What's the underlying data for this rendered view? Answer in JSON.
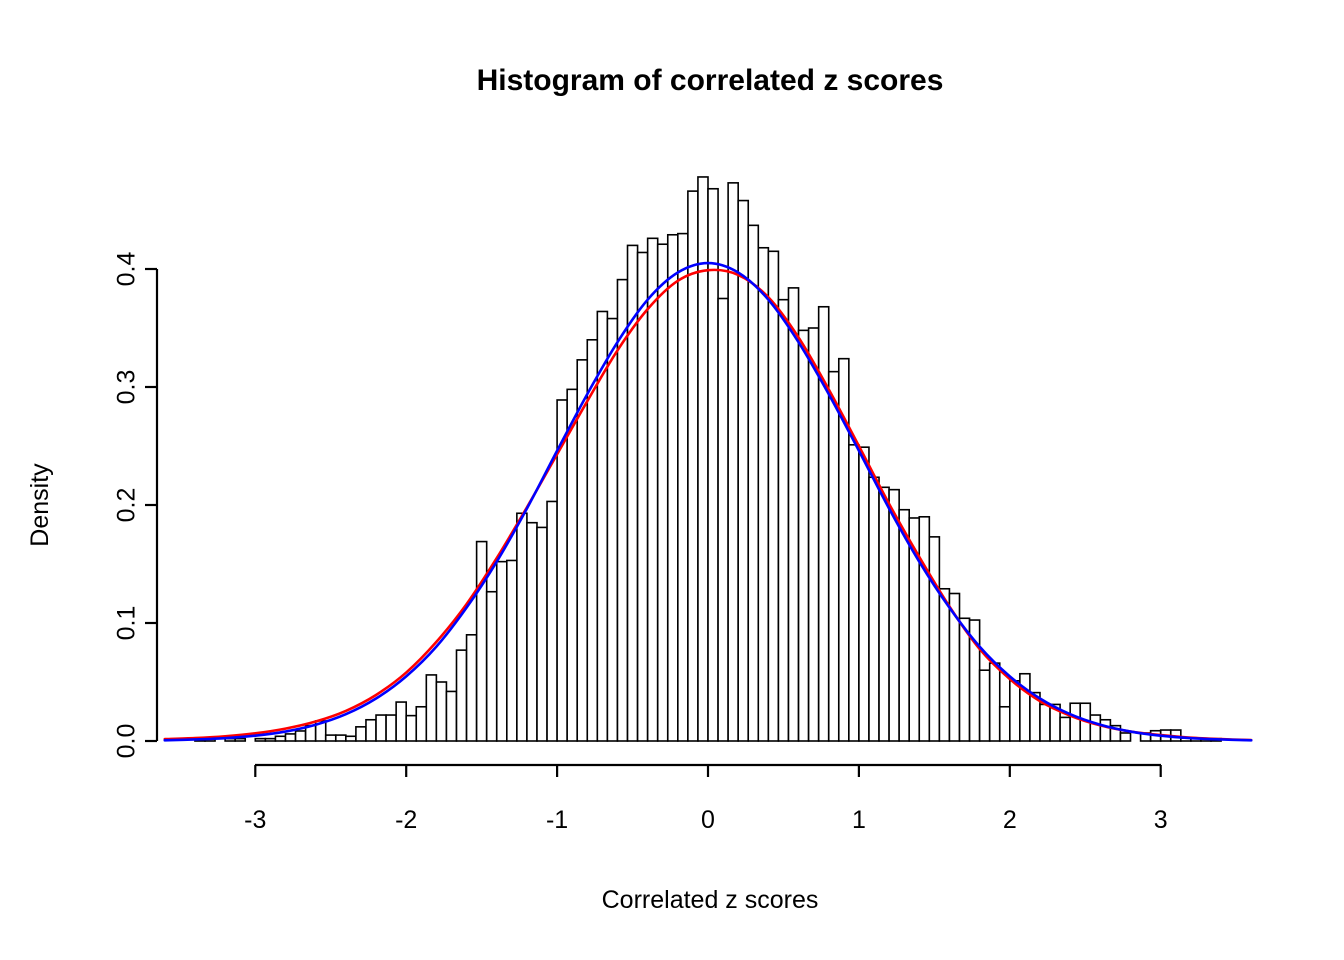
{
  "figure": {
    "title": "Histogram of correlated z scores",
    "xlabel": "Correlated z scores",
    "ylabel": "Density",
    "background_color": "#ffffff",
    "foreground_color": "#000000"
  },
  "axes": {
    "x_tick_labels": [
      "-3",
      "-2",
      "-1",
      "0",
      "1",
      "2",
      "3"
    ],
    "x_tick_values": [
      -3,
      -2,
      -1,
      0,
      1,
      2,
      3
    ],
    "y_tick_labels": [
      "0.0",
      "0.1",
      "0.2",
      "0.3",
      "0.4"
    ],
    "y_tick_values": [
      0.0,
      0.1,
      0.2,
      0.3,
      0.4
    ],
    "xlim": [
      -3.65,
      3.65
    ],
    "ylim": [
      0,
      0.485
    ],
    "grid": false,
    "legend": "none"
  },
  "chart_data": {
    "type": "bar",
    "subtype": "histogram-with-density-overlays",
    "title": "Histogram of correlated z scores",
    "xlabel": "Correlated z scores",
    "ylabel": "Density",
    "histogram": {
      "bar_fill": "#ffffff",
      "bar_border": "#000000",
      "bin_start": -3.4,
      "bin_width": 0.066667,
      "densities": [
        0.002,
        0.002,
        0,
        0.002,
        0.002,
        0,
        0.002,
        0.002,
        0.004,
        0.006,
        0.0085,
        0.013,
        0.017,
        0.005,
        0.005,
        0.004,
        0.012,
        0.018,
        0.022,
        0.022,
        0.033,
        0.0215,
        0.029,
        0.056,
        0.05,
        0.042,
        0.077,
        0.09,
        0.169,
        0.1265,
        0.152,
        0.153,
        0.193,
        0.185,
        0.181,
        0.203,
        0.289,
        0.298,
        0.323,
        0.34,
        0.364,
        0.358,
        0.391,
        0.42,
        0.414,
        0.426,
        0.421,
        0.429,
        0.43,
        0.466,
        0.478,
        0.468,
        0.375,
        0.473,
        0.458,
        0.437,
        0.418,
        0.415,
        0.374,
        0.384,
        0.348,
        0.35,
        0.368,
        0.313,
        0.324,
        0.251,
        0.249,
        0.2235,
        0.215,
        0.213,
        0.196,
        0.189,
        0.19,
        0.173,
        0.129,
        0.125,
        0.104,
        0.1025,
        0.06,
        0.066,
        0.029,
        0.051,
        0.057,
        0.041,
        0.031,
        0.031,
        0.02,
        0.032,
        0.032,
        0.022,
        0.018,
        0.013,
        0.0068,
        0,
        0.0068,
        0.0087,
        0.0093,
        0.0093,
        0.0025,
        0.0025,
        0.002,
        0.002
      ]
    },
    "series": [
      {
        "name": "kernel-density-curve",
        "color": "#ff0000",
        "points": [
          [
            -3.6,
            0.0016
          ],
          [
            -3.4,
            0.0025
          ],
          [
            -3.2,
            0.004
          ],
          [
            -3.0,
            0.0065
          ],
          [
            -2.8,
            0.0105
          ],
          [
            -2.6,
            0.0165
          ],
          [
            -2.4,
            0.0255
          ],
          [
            -2.2,
            0.039
          ],
          [
            -2.0,
            0.058
          ],
          [
            -1.8,
            0.084
          ],
          [
            -1.6,
            0.116
          ],
          [
            -1.4,
            0.155
          ],
          [
            -1.2,
            0.198
          ],
          [
            -1.0,
            0.243
          ],
          [
            -0.8,
            0.288
          ],
          [
            -0.6,
            0.331
          ],
          [
            -0.4,
            0.366
          ],
          [
            -0.2,
            0.39
          ],
          [
            0.0,
            0.399
          ],
          [
            0.2,
            0.395
          ],
          [
            0.4,
            0.376
          ],
          [
            0.6,
            0.342
          ],
          [
            0.8,
            0.298
          ],
          [
            1.0,
            0.25
          ],
          [
            1.2,
            0.201
          ],
          [
            1.4,
            0.156
          ],
          [
            1.6,
            0.114
          ],
          [
            1.8,
            0.078
          ],
          [
            2.0,
            0.0525
          ],
          [
            2.2,
            0.0338
          ],
          [
            2.4,
            0.0215
          ],
          [
            2.6,
            0.0132
          ],
          [
            2.8,
            0.008
          ],
          [
            3.0,
            0.005
          ],
          [
            3.2,
            0.0028
          ],
          [
            3.4,
            0.0016
          ],
          [
            3.6,
            0.0008
          ]
        ]
      },
      {
        "name": "normal-density-curve",
        "color": "#0000ff",
        "points": [
          [
            -3.6,
            0.0006
          ],
          [
            -3.4,
            0.0013
          ],
          [
            -3.2,
            0.0024
          ],
          [
            -3.0,
            0.0045
          ],
          [
            -2.8,
            0.008
          ],
          [
            -2.6,
            0.0138
          ],
          [
            -2.4,
            0.0227
          ],
          [
            -2.2,
            0.036
          ],
          [
            -2.0,
            0.0548
          ],
          [
            -1.8,
            0.08
          ],
          [
            -1.6,
            0.113
          ],
          [
            -1.4,
            0.152
          ],
          [
            -1.2,
            0.197
          ],
          [
            -1.0,
            0.246
          ],
          [
            -0.8,
            0.294
          ],
          [
            -0.6,
            0.338
          ],
          [
            -0.4,
            0.374
          ],
          [
            -0.2,
            0.397
          ],
          [
            0.0,
            0.405
          ],
          [
            0.2,
            0.397
          ],
          [
            0.4,
            0.374
          ],
          [
            0.6,
            0.338
          ],
          [
            0.8,
            0.294
          ],
          [
            1.0,
            0.246
          ],
          [
            1.2,
            0.197
          ],
          [
            1.4,
            0.152
          ],
          [
            1.6,
            0.113
          ],
          [
            1.8,
            0.08
          ],
          [
            2.0,
            0.0548
          ],
          [
            2.2,
            0.036
          ],
          [
            2.4,
            0.0227
          ],
          [
            2.6,
            0.0138
          ],
          [
            2.8,
            0.008
          ],
          [
            3.0,
            0.0045
          ],
          [
            3.2,
            0.0024
          ],
          [
            3.4,
            0.0013
          ],
          [
            3.6,
            0.0006
          ]
        ]
      }
    ]
  }
}
